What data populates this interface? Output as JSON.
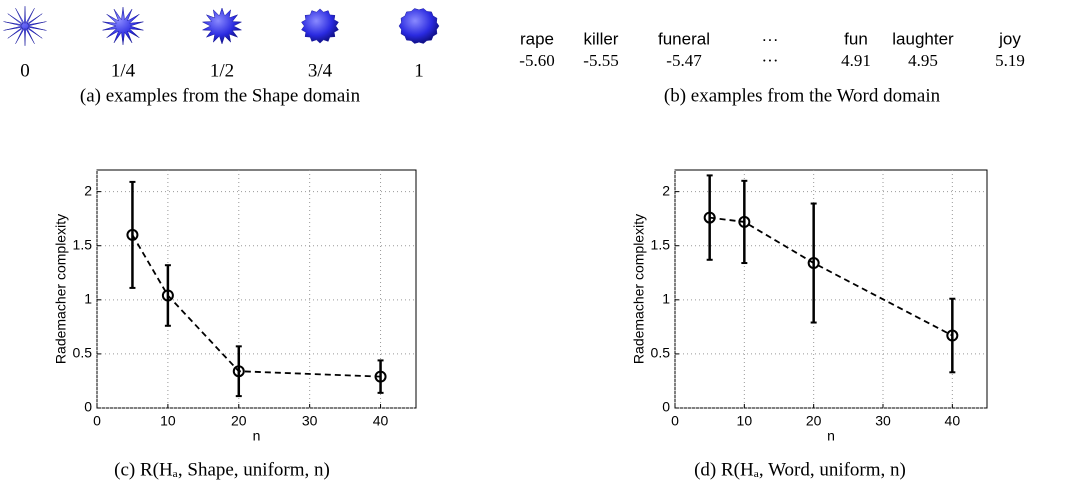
{
  "figure_a": {
    "labels": [
      "0",
      "1/4",
      "1/2",
      "3/4",
      "1"
    ],
    "caption": "(a) examples from the Shape domain"
  },
  "figure_b": {
    "words": [
      "rape",
      "killer",
      "funeral",
      "···",
      "fun",
      "laughter",
      "joy"
    ],
    "scores": [
      "-5.60",
      "-5.55",
      "-5.47",
      "···",
      "4.91",
      "4.95",
      "5.19"
    ],
    "caption": "(b) examples from the Word domain"
  },
  "chart_data": [
    {
      "type": "line",
      "caption": "(c) R(Hₐ, Shape, uniform, n)",
      "xlabel": "n",
      "ylabel": "Rademacher complexity",
      "x": [
        5,
        10,
        20,
        40
      ],
      "series": [
        {
          "color": "#000000",
          "values": [
            1.6,
            1.04,
            0.34,
            0.29
          ],
          "errors": [
            0.49,
            0.28,
            0.23,
            0.15
          ]
        }
      ],
      "line_style": "dashed",
      "xlim": [
        0,
        45
      ],
      "ylim": [
        0,
        2.2
      ],
      "xticks": [
        0,
        10,
        20,
        30,
        40
      ],
      "yticks": [
        0,
        0.5,
        1,
        1.5,
        2
      ],
      "grid": true
    },
    {
      "type": "line",
      "caption": "(d) R(Hₐ, Word, uniform, n)",
      "xlabel": "n",
      "ylabel": "Rademacher complexity",
      "x": [
        5,
        10,
        20,
        40
      ],
      "series": [
        {
          "color": "#000000",
          "values": [
            1.76,
            1.72,
            1.34,
            0.67
          ],
          "errors": [
            0.39,
            0.38,
            0.55,
            0.34
          ]
        }
      ],
      "line_style": "dashed",
      "xlim": [
        0,
        45
      ],
      "ylim": [
        0,
        2.2
      ],
      "xticks": [
        0,
        10,
        20,
        30,
        40
      ],
      "yticks": [
        0,
        0.5,
        1,
        1.5,
        2
      ],
      "grid": true
    }
  ]
}
